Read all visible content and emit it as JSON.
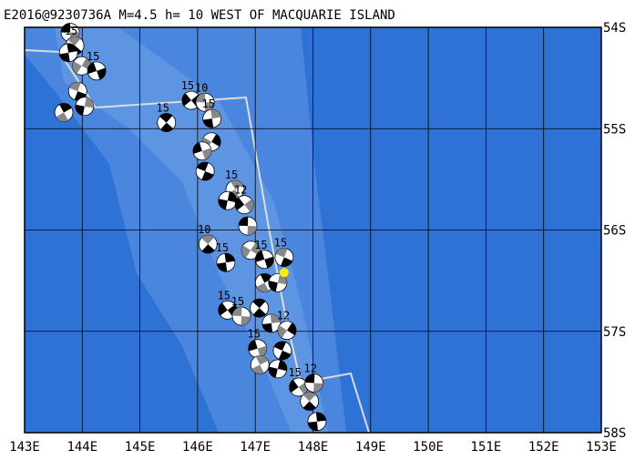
{
  "map": {
    "title": "E2016@9230736A M=4.5 h= 10 WEST OF MACQUARIE ISLAND",
    "xlim": [
      143,
      153
    ],
    "ylim": [
      -54,
      -58
    ],
    "xticks": [
      {
        "value": 143,
        "label": "143E"
      },
      {
        "value": 144,
        "label": "144E"
      },
      {
        "value": 145,
        "label": "145E"
      },
      {
        "value": 146,
        "label": "146E"
      },
      {
        "value": 147,
        "label": "147E"
      },
      {
        "value": 148,
        "label": "148E"
      },
      {
        "value": 149,
        "label": "149E"
      },
      {
        "value": 150,
        "label": "150E"
      },
      {
        "value": 151,
        "label": "151E"
      },
      {
        "value": 152,
        "label": "152E"
      },
      {
        "value": 153,
        "label": "153E"
      }
    ],
    "yticks": [
      {
        "value": -54,
        "label": "54S"
      },
      {
        "value": -55,
        "label": "55S"
      },
      {
        "value": -56,
        "label": "56S"
      },
      {
        "value": -57,
        "label": "57S"
      },
      {
        "value": -58,
        "label": "58S"
      }
    ],
    "grid": true,
    "epicenter": {
      "lon": 147.5,
      "lat": -56.42,
      "color": "#ffee00"
    },
    "events": {
      "lon": [
        143.79,
        143.87,
        143.76,
        143.99,
        144.25,
        143.92,
        143.68,
        144.04,
        145.89,
        146.13,
        145.46,
        146.25,
        146.24,
        146.08,
        146.13,
        146.65,
        146.52,
        146.81,
        146.87,
        146.18,
        146.49,
        146.92,
        147.16,
        147.5,
        147.16,
        147.39,
        146.52,
        146.76,
        147.07,
        147.28,
        147.55,
        147.04,
        147.47,
        147.08,
        147.39,
        147.75,
        148.02,
        147.94,
        148.07
      ],
      "lat": [
        -54.05,
        -54.18,
        -54.25,
        -54.38,
        -54.43,
        -54.63,
        -54.84,
        -54.78,
        -54.72,
        -54.74,
        -54.94,
        -54.9,
        -55.13,
        -55.22,
        -55.42,
        -55.6,
        -55.71,
        -55.75,
        -55.96,
        -56.14,
        -56.32,
        -56.2,
        -56.29,
        -56.27,
        -56.52,
        -56.52,
        -56.79,
        -56.85,
        -56.77,
        -56.92,
        -56.99,
        -57.17,
        -57.19,
        -57.33,
        -57.37,
        -57.55,
        -57.51,
        -57.69,
        -57.89
      ],
      "labels": [
        null,
        "15",
        null,
        null,
        "15",
        null,
        null,
        null,
        "15",
        "10",
        "15",
        "15",
        null,
        null,
        null,
        "15",
        null,
        "12",
        null,
        "10",
        "15",
        null,
        "15",
        "15",
        null,
        null,
        "15",
        "15",
        null,
        null,
        "12",
        "15",
        null,
        null,
        null,
        "15",
        "12",
        null,
        null
      ]
    }
  }
}
